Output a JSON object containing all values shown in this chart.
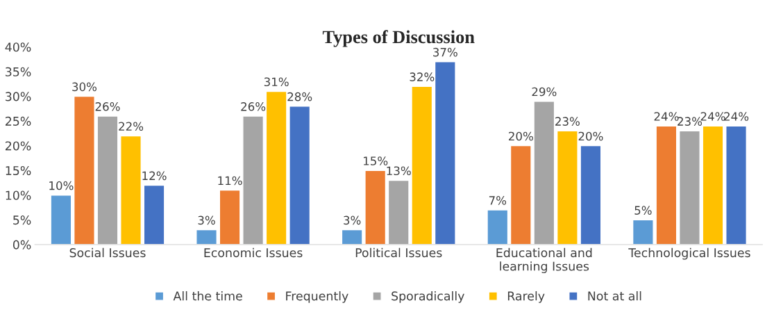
{
  "chart_data": {
    "type": "bar",
    "title": "Types of Discussion",
    "categories": [
      "Social Issues",
      "Economic Issues",
      "Political Issues",
      "Educational and\nlearning Issues",
      "Technological Issues"
    ],
    "series": [
      {
        "name": "All the time",
        "color": "#5b9bd5",
        "values": [
          10,
          3,
          3,
          7,
          5
        ],
        "value_labels": [
          "10%",
          "3%",
          "3%",
          "7%",
          "5%"
        ]
      },
      {
        "name": "Frequently",
        "color": "#ed7d31",
        "values": [
          30,
          11,
          15,
          20,
          24
        ],
        "value_labels": [
          "30%",
          "11%",
          "15%",
          "20%",
          "24%"
        ]
      },
      {
        "name": "Sporadically",
        "color": "#a5a5a5",
        "values": [
          26,
          26,
          13,
          29,
          23
        ],
        "value_labels": [
          "26%",
          "26%",
          "13%",
          "29%",
          "23%"
        ]
      },
      {
        "name": "Rarely",
        "color": "#ffc000",
        "values": [
          22,
          31,
          32,
          23,
          24
        ],
        "value_labels": [
          "22%",
          "31%",
          "32%",
          "23%",
          "24%"
        ]
      },
      {
        "name": "Not at all",
        "color": "#4472c4",
        "values": [
          12,
          28,
          37,
          20,
          24
        ],
        "value_labels": [
          "12%",
          "28%",
          "37%",
          "20%",
          "24%"
        ]
      }
    ],
    "ylim": [
      0,
      40
    ],
    "yticks": [
      {
        "value": 0,
        "label": "0%"
      },
      {
        "value": 5,
        "label": "5%"
      },
      {
        "value": 10,
        "label": "10%"
      },
      {
        "value": 15,
        "label": "15%"
      },
      {
        "value": 20,
        "label": "20%"
      },
      {
        "value": 25,
        "label": "25%"
      },
      {
        "value": 30,
        "label": "30%"
      },
      {
        "value": 35,
        "label": "35%"
      },
      {
        "value": 40,
        "label": "40%"
      }
    ],
    "grid": false,
    "legend": "bottom"
  }
}
